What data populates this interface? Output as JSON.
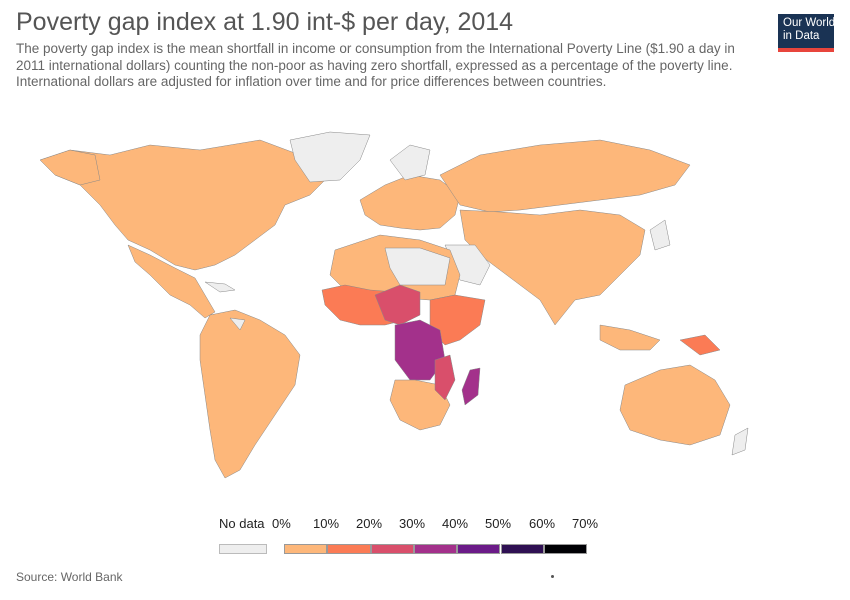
{
  "title": "Poverty gap index at 1.90 int-$ per day, 2014",
  "subtitle": "The poverty gap index is the mean shortfall in income or consumption from the International Poverty Line ($1.90 a day in 2011 international dollars) counting the non-poor as having zero shortfall, expressed as a percentage of the poverty line. International dollars are adjusted for inflation over time and for price differences between countries.",
  "logo": {
    "line1": "Our World",
    "line2": "in Data"
  },
  "legend": {
    "no_data_label": "No data",
    "ticks": [
      "0%",
      "10%",
      "20%",
      "30%",
      "40%",
      "50%",
      "60%",
      "70%"
    ],
    "colors": [
      "#fdb77a",
      "#fb7b55",
      "#d94f6b",
      "#a3318b",
      "#6b1b88",
      "#2f1053",
      "#000004"
    ],
    "no_data_color": "#eeeeee"
  },
  "source": "Source: World Bank",
  "map": {
    "ocean_color": "#ffffff",
    "land_border_color": "#888888"
  }
}
